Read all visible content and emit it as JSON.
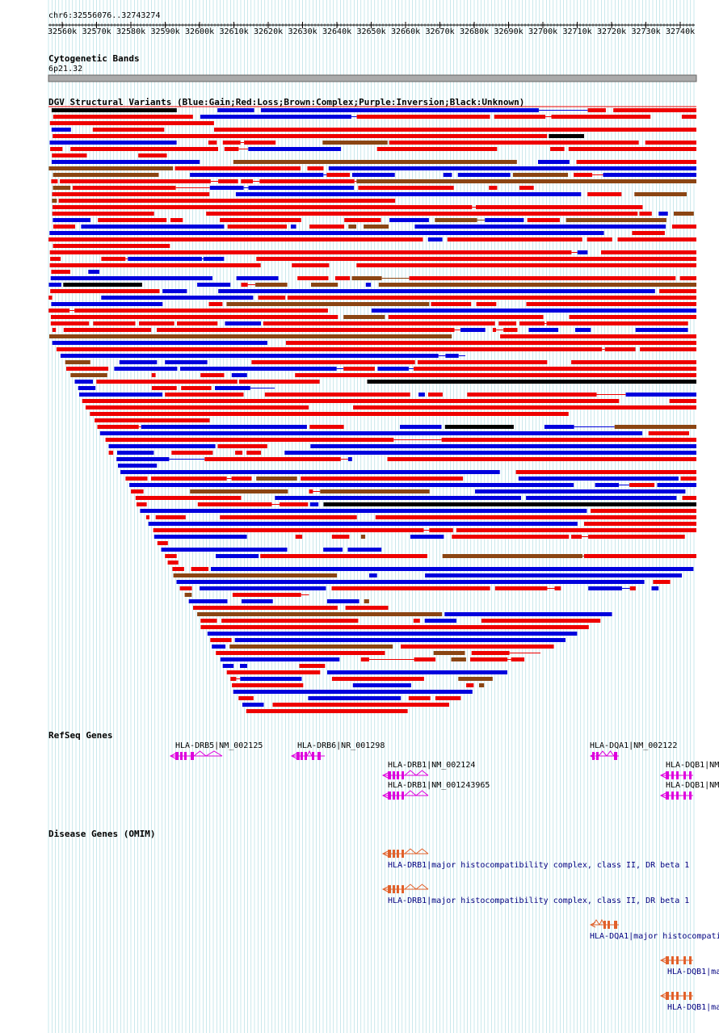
{
  "position": "chr6:32556076..32743274",
  "ruler": {
    "ticks": [
      "32560k",
      "32570k",
      "32580k",
      "32590k",
      "32600k",
      "32610k",
      "32620k",
      "32630k",
      "32640k",
      "32650k",
      "32660k",
      "32670k",
      "32680k",
      "32690k",
      "32700k",
      "32710k",
      "32720k",
      "32730k",
      "32740k"
    ]
  },
  "tracks": {
    "cytoband": {
      "title": "Cytogenetic Bands",
      "band": "6p21.32"
    },
    "dgv": {
      "title": "DGV Structural Variants (Blue:Gain;Red:Loss;Brown:Complex;Purple:Inversion;Black:Unknown)",
      "colors": {
        "gain": "#0000dd",
        "loss": "#ee0000",
        "complex": "#8b4513",
        "inversion": "#800080",
        "unknown": "#000000"
      }
    },
    "refseq": {
      "title": "RefSeq Genes",
      "genes": [
        {
          "label": "HLA-DRB5|NM_002125"
        },
        {
          "label": "HLA-DRB6|NR_001298"
        },
        {
          "label": "HLA-DQA1|NM_002122"
        },
        {
          "label": "HLA-DRB1|NM_002124"
        },
        {
          "label": "HLA-DQB1|NM"
        },
        {
          "label": "HLA-DRB1|NM_001243965"
        },
        {
          "label": "HLA-DQB1|NM"
        }
      ]
    },
    "omim": {
      "title": "Disease Genes (OMIM)",
      "genes": [
        {
          "label": "HLA-DRB1|major histocompatibility complex, class II, DR beta 1"
        },
        {
          "label": "HLA-DRB1|major histocompatibility complex, class II, DR beta 1"
        },
        {
          "label": "HLA-DQA1|major histocompati"
        },
        {
          "label": "HLA-DQB1|ma"
        },
        {
          "label": "HLA-DQB1|ma"
        }
      ]
    }
  }
}
